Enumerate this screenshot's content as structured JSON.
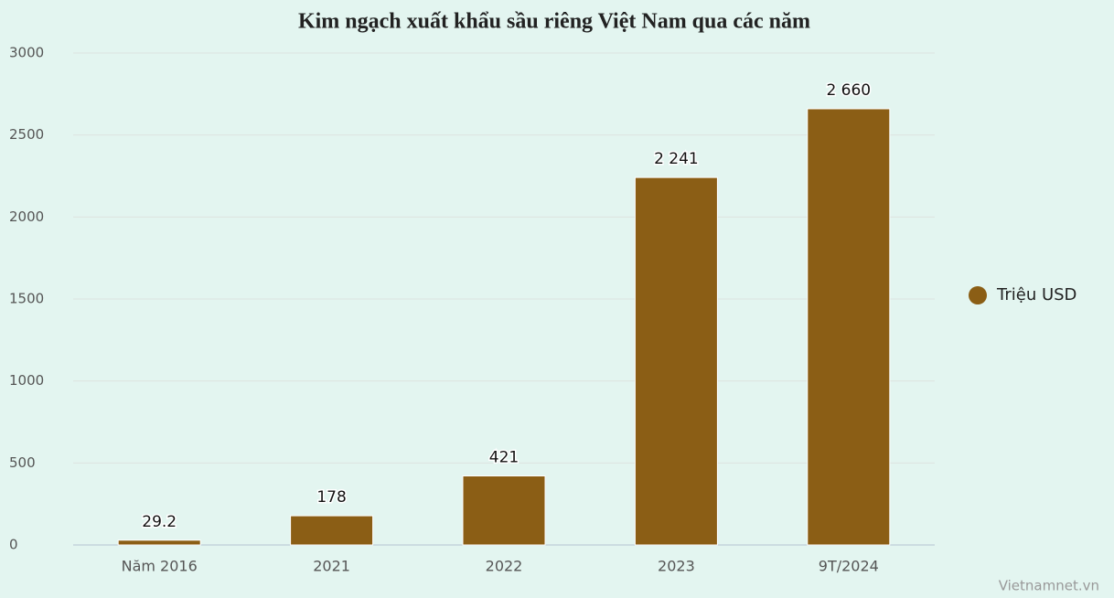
{
  "chart_data": {
    "type": "bar",
    "title": "Kim ngạch xuất khẩu sầu riêng Việt Nam qua các năm",
    "categories": [
      "Năm 2016",
      "2021",
      "2022",
      "2023",
      "9T/2024"
    ],
    "series": [
      {
        "name": "Triệu USD",
        "color": "#8b5e15",
        "values": [
          29.2,
          178,
          421,
          2241,
          2660
        ],
        "value_labels": [
          "29.2",
          "178",
          "421",
          "2 241",
          "2 660"
        ]
      }
    ],
    "ylim": [
      0,
      3000
    ],
    "yticks": [
      0,
      500,
      1000,
      1500,
      2000,
      2500,
      3000
    ],
    "grid": true,
    "legend": "right",
    "credit": "Vietnamnet.vn"
  }
}
